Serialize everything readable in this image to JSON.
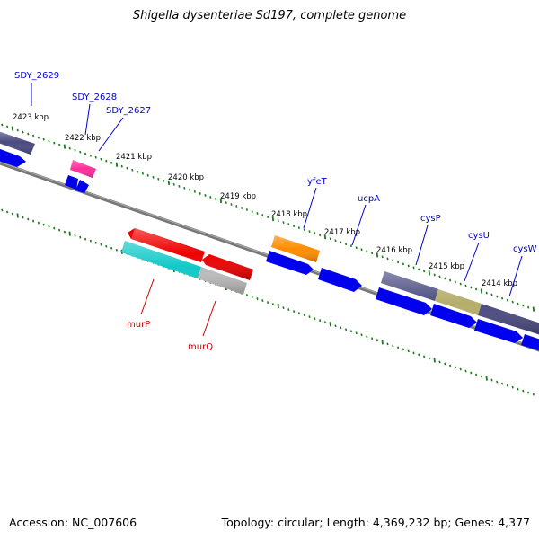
{
  "header": {
    "title": "Shigella dysenteriae Sd197, complete genome"
  },
  "footer": {
    "accession": "Accession: NC_007606",
    "summary": "Topology: circular; Length: 4,369,232 bp; Genes: 4,377"
  },
  "ticks": [
    {
      "label": "2423 kbp"
    },
    {
      "label": "2422 kbp"
    },
    {
      "label": "2421 kbp"
    },
    {
      "label": "2420 kbp"
    },
    {
      "label": "2419 kbp"
    },
    {
      "label": "2418 kbp"
    },
    {
      "label": "2417 kbp"
    },
    {
      "label": "2416 kbp"
    },
    {
      "label": "2415 kbp"
    },
    {
      "label": "2414 kbp"
    }
  ],
  "genes_forward": [
    {
      "name": "SDY_2629",
      "color": "#0000cc"
    },
    {
      "name": "SDY_2628",
      "color": "#0000cc"
    },
    {
      "name": "SDY_2627",
      "color": "#0000cc"
    },
    {
      "name": "yfeT",
      "color": "#0000cc"
    },
    {
      "name": "ucpA",
      "color": "#0000cc"
    },
    {
      "name": "cysP",
      "color": "#0000cc"
    },
    {
      "name": "cysU",
      "color": "#0000cc"
    },
    {
      "name": "cysW",
      "color": "#0000cc"
    }
  ],
  "genes_reverse": [
    {
      "name": "murP",
      "color": "#cc0000"
    },
    {
      "name": "murQ",
      "color": "#cc0000"
    }
  ],
  "colors": {
    "backbone": "#777777",
    "tick": "#1a7a1a",
    "cds": "#0000ee",
    "rna_pink": "#ff2d9b",
    "orange": "#ff8c00",
    "red": "#ee0000",
    "cyan": "#11c8c8",
    "gray": "#bbbbbb",
    "dark_purple": "#4a4a80",
    "olive": "#b5ad6a"
  }
}
